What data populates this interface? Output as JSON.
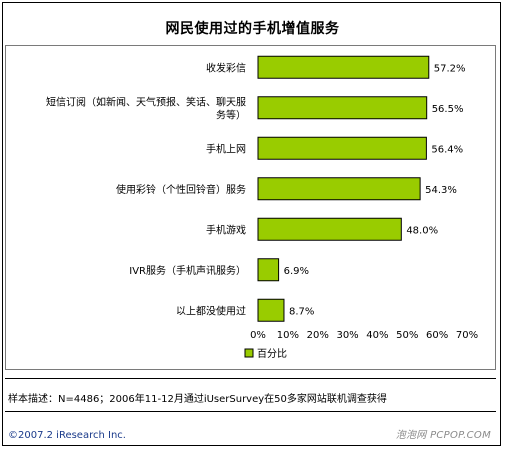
{
  "chart_data": {
    "type": "bar",
    "orientation": "horizontal",
    "title": "网民使用过的手机增值服务",
    "categories": [
      [
        "收发彩信"
      ],
      [
        "短信订阅（如新闻、天气预报、笑话、聊天服",
        "务等）"
      ],
      [
        "手机上网"
      ],
      [
        "使用彩铃（个性回铃音）服务"
      ],
      [
        "手机游戏"
      ],
      [
        "IVR服务（手机声讯服务）"
      ],
      [
        "以上都没使用过"
      ]
    ],
    "series": [
      {
        "name": "百分比",
        "values": [
          57.2,
          56.5,
          56.4,
          54.3,
          48.0,
          6.9,
          8.7
        ],
        "value_labels": [
          "57.2%",
          "56.5%",
          "56.4%",
          "54.3%",
          "48.0%",
          "6.9%",
          "8.7%"
        ]
      }
    ],
    "xlim": [
      0,
      70
    ],
    "xticks": [
      "0%",
      "10%",
      "20%",
      "30%",
      "40%",
      "50%",
      "60%",
      "70%"
    ],
    "xtick_values": [
      0,
      10,
      20,
      30,
      40,
      50,
      60,
      70
    ],
    "bar_color": "#99cc00",
    "bar_border": "#000000",
    "legend": "bottom-center",
    "grid": false
  },
  "footer": {
    "note": "样本描述：N=4486；2006年11-12月通过iUserSurvey在50多家网站联机调查获得",
    "copyright": "©2007.2 iResearch Inc.",
    "watermark": "泡泡网 PCPOP.COM"
  }
}
